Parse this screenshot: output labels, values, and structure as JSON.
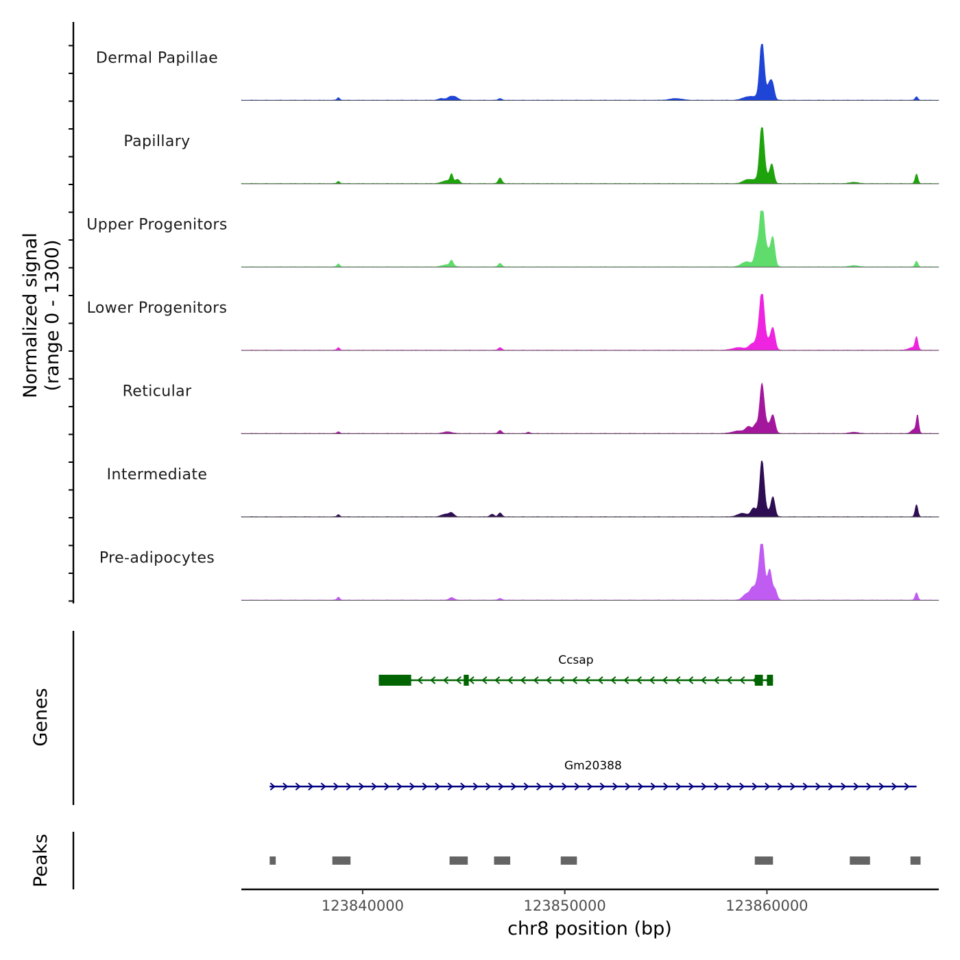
{
  "chart_data": {
    "type": "area",
    "region": "chr8",
    "xrange": [
      123834000,
      123868500
    ],
    "xticks": [
      123840000,
      123850000,
      123860000
    ],
    "xtick_labels": [
      "123840000",
      "123850000",
      "123860000"
    ],
    "xlabel": "chr8 position (bp)",
    "ylabel_line1": "Normalized signal",
    "ylabel_line2": "(range 0 - 1300)",
    "yrange": [
      0,
      1300
    ],
    "tracks": [
      {
        "name": "Dermal Papillae",
        "color": "#1f45d6",
        "peaks": [
          [
            123838800,
            60,
            70
          ],
          [
            123843900,
            40,
            160
          ],
          [
            123844300,
            60,
            120
          ],
          [
            123844550,
            80,
            160
          ],
          [
            123846800,
            40,
            90
          ],
          [
            123855500,
            40,
            300
          ],
          [
            123859000,
            60,
            250
          ],
          [
            123859500,
            70,
            310
          ],
          [
            123859750,
            1300,
            110
          ],
          [
            123860000,
            120,
            200
          ],
          [
            123860150,
            300,
            110
          ],
          [
            123860300,
            240,
            90
          ],
          [
            123867400,
            80,
            70
          ]
        ]
      },
      {
        "name": "Papillary",
        "color": "#1ea30c",
        "peaks": [
          [
            123838800,
            50,
            70
          ],
          [
            123844200,
            70,
            250
          ],
          [
            123844400,
            180,
            70
          ],
          [
            123844700,
            90,
            100
          ],
          [
            123846800,
            130,
            90
          ],
          [
            123859000,
            80,
            200
          ],
          [
            123859500,
            90,
            250
          ],
          [
            123859750,
            1300,
            110
          ],
          [
            123860000,
            150,
            150
          ],
          [
            123860250,
            420,
            100
          ],
          [
            123864300,
            30,
            200
          ],
          [
            123867400,
            220,
            70
          ]
        ]
      },
      {
        "name": "Upper Progenitors",
        "color": "#5fdc6c",
        "peaks": [
          [
            123838800,
            70,
            70
          ],
          [
            123844200,
            50,
            250
          ],
          [
            123844400,
            120,
            80
          ],
          [
            123846800,
            80,
            90
          ],
          [
            123859000,
            120,
            250
          ],
          [
            123859500,
            420,
            110
          ],
          [
            123859750,
            1300,
            110
          ],
          [
            123860000,
            400,
            200
          ],
          [
            123860300,
            570,
            100
          ],
          [
            123864300,
            30,
            200
          ],
          [
            123867400,
            130,
            70
          ]
        ]
      },
      {
        "name": "Lower Progenitors",
        "color": "#ee24e0",
        "peaks": [
          [
            123838800,
            60,
            70
          ],
          [
            123846800,
            60,
            90
          ],
          [
            123858600,
            60,
            300
          ],
          [
            123859300,
            150,
            180
          ],
          [
            123859550,
            230,
            100
          ],
          [
            123859750,
            1300,
            110
          ],
          [
            123860000,
            230,
            180
          ],
          [
            123860300,
            470,
            110
          ],
          [
            123867200,
            60,
            200
          ],
          [
            123867400,
            280,
            70
          ]
        ]
      },
      {
        "name": "Reticular",
        "color": "#a3179c",
        "peaks": [
          [
            123838800,
            40,
            70
          ],
          [
            123844200,
            40,
            200
          ],
          [
            123846800,
            70,
            90
          ],
          [
            123848200,
            30,
            80
          ],
          [
            123858600,
            60,
            300
          ],
          [
            123859100,
            150,
            150
          ],
          [
            123859450,
            200,
            110
          ],
          [
            123859750,
            1100,
            110
          ],
          [
            123860000,
            200,
            160
          ],
          [
            123860300,
            400,
            110
          ],
          [
            123864300,
            30,
            200
          ],
          [
            123867300,
            100,
            150
          ],
          [
            123867450,
            380,
            60
          ]
        ]
      },
      {
        "name": "Intermediate",
        "color": "#2e0d52",
        "peaks": [
          [
            123838800,
            50,
            70
          ],
          [
            123844100,
            60,
            200
          ],
          [
            123844400,
            80,
            120
          ],
          [
            123846400,
            60,
            100
          ],
          [
            123846800,
            90,
            90
          ],
          [
            123858800,
            80,
            250
          ],
          [
            123859350,
            200,
            130
          ],
          [
            123859750,
            1300,
            110
          ],
          [
            123860000,
            130,
            150
          ],
          [
            123860300,
            450,
            100
          ],
          [
            123867400,
            280,
            70
          ]
        ]
      },
      {
        "name": "Pre-adipocytes",
        "color": "#c05cf2",
        "peaks": [
          [
            123838800,
            70,
            70
          ],
          [
            123844400,
            60,
            120
          ],
          [
            123846800,
            40,
            90
          ],
          [
            123859000,
            150,
            180
          ],
          [
            123859300,
            250,
            120
          ],
          [
            123859550,
            370,
            110
          ],
          [
            123859750,
            1300,
            110
          ],
          [
            123860000,
            280,
            160
          ],
          [
            123860150,
            520,
            100
          ],
          [
            123860400,
            240,
            100
          ],
          [
            123867400,
            170,
            70
          ]
        ]
      }
    ],
    "genes": [
      {
        "name": "Ccsap",
        "strand": "-",
        "color": "#006400",
        "start": 123840800,
        "end": 123860300,
        "exons": [
          [
            123840800,
            123842400,
            "thick"
          ],
          [
            123845000,
            123845250,
            "thin"
          ],
          [
            123859400,
            123859800,
            "thick"
          ],
          [
            123860000,
            123860300,
            "thick"
          ]
        ]
      },
      {
        "name": "Gm20388",
        "strand": "+",
        "color": "#000080",
        "start": 123835400,
        "end": 123867400,
        "exons": []
      }
    ],
    "peaks_track": [
      [
        123835400,
        123835700
      ],
      [
        123838500,
        123839400
      ],
      [
        123844300,
        123845200
      ],
      [
        123846500,
        123847300
      ],
      [
        123849800,
        123850600
      ],
      [
        123859400,
        123860300
      ],
      [
        123864100,
        123865100
      ],
      [
        123867100,
        123867600
      ]
    ],
    "panel_labels": {
      "genes": "Genes",
      "peaks": "Peaks"
    }
  }
}
